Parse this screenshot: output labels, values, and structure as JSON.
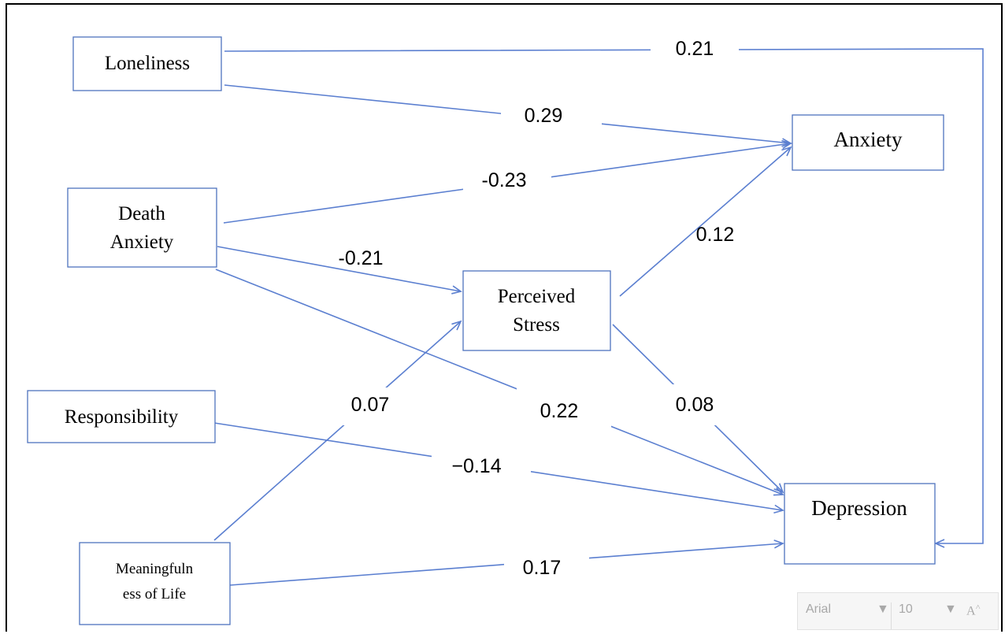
{
  "nodes": {
    "loneliness": [
      "Loneliness"
    ],
    "death_anxiety": [
      "Death",
      "Anxiety"
    ],
    "responsibility": [
      "Responsibility"
    ],
    "meaningfulness": [
      "Meaningfuln",
      "ess of Life"
    ],
    "perceived_stress": [
      "Perceived",
      "Stress"
    ],
    "anxiety": [
      "Anxiety"
    ],
    "depression": [
      "Depression"
    ]
  },
  "edges": [
    {
      "from": "Loneliness",
      "to": "Depression",
      "coef": "0.21"
    },
    {
      "from": "Loneliness",
      "to": "Anxiety",
      "coef": "0.29"
    },
    {
      "from": "Death Anxiety",
      "to": "Anxiety",
      "coef": "-0.23"
    },
    {
      "from": "Perceived Stress",
      "to": "Anxiety",
      "coef": "0.12"
    },
    {
      "from": "Death Anxiety",
      "to": "Perceived Stress",
      "coef": "-0.21"
    },
    {
      "from": "Meaningfulness of Life",
      "to": "Perceived Stress",
      "coef": "0.07"
    },
    {
      "from": "Death Anxiety",
      "to": "Depression",
      "coef": "0.22"
    },
    {
      "from": "Perceived Stress",
      "to": "Depression",
      "coef": "0.08"
    },
    {
      "from": "Responsibility",
      "to": "Depression",
      "coef": "−0.14"
    },
    {
      "from": "Meaningfulness of Life",
      "to": "Depression",
      "coef": "0.17"
    }
  ],
  "font_toolbar": {
    "font_name": "Arial",
    "font_size": "10",
    "grow_font_icon": "A"
  },
  "colors": {
    "line": "#5b7fd0",
    "box_border": "#4f73be"
  }
}
